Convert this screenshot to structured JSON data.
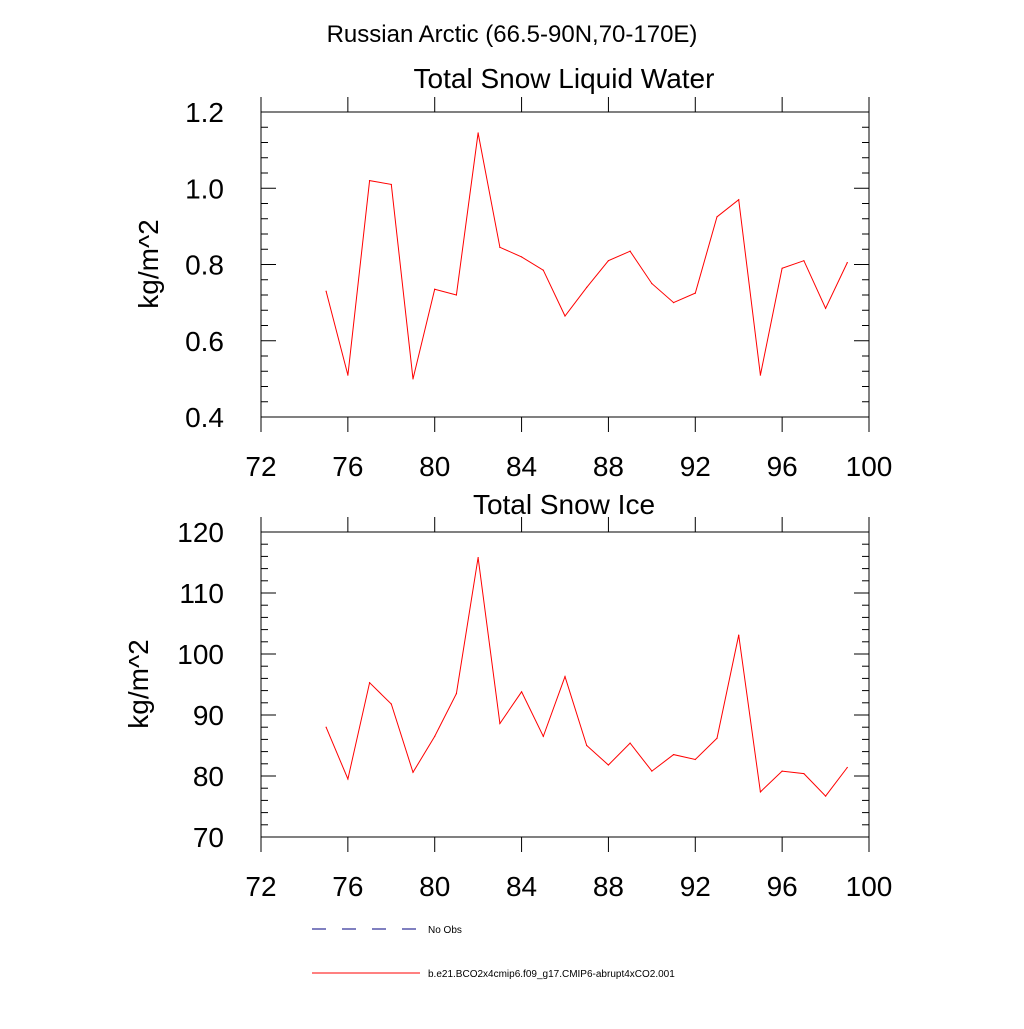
{
  "title": "Russian Arctic (66.5-90N,70-170E)",
  "colors": {
    "series": "#ff0000",
    "obs": "#000080",
    "axis": "#000000"
  },
  "legend": [
    {
      "label": "No Obs",
      "style": "dashed",
      "color": "#000080"
    },
    {
      "label": "b.e21.BCO2x4cmip6.f09_g17.CMIP6-abrupt4xCO2.001",
      "style": "solid",
      "color": "#ff0000"
    }
  ],
  "chart_data": [
    {
      "type": "line",
      "title": "Total Snow Liquid Water",
      "xlabel": "",
      "ylabel": "kg/m^2",
      "xlim": [
        72,
        100
      ],
      "ylim": [
        0.4,
        1.2
      ],
      "xticks": [
        72,
        76,
        80,
        84,
        88,
        92,
        96,
        100
      ],
      "xtick_labels": [
        "72",
        "76",
        "80",
        "84",
        "88",
        "92",
        "96",
        "100"
      ],
      "yticks": [
        0.4,
        0.6,
        0.8,
        1.0,
        1.2
      ],
      "ytick_labels": [
        "0.4",
        "0.6",
        "0.8",
        "1.0",
        "1.2"
      ],
      "x": [
        75,
        76,
        77,
        78,
        79,
        80,
        81,
        82,
        83,
        84,
        85,
        86,
        87,
        88,
        89,
        90,
        91,
        92,
        93,
        94,
        95,
        96,
        97,
        98,
        99
      ],
      "series": [
        {
          "name": "b.e21.BCO2x4cmip6.f09_g17.CMIP6-abrupt4xCO2.001",
          "values": [
            0.73,
            0.51,
            1.02,
            1.01,
            0.5,
            0.735,
            0.72,
            1.145,
            0.845,
            0.82,
            0.785,
            0.665,
            0.74,
            0.81,
            0.835,
            0.75,
            0.7,
            0.725,
            0.925,
            0.97,
            0.51,
            0.79,
            0.81,
            0.685,
            0.805
          ]
        }
      ]
    },
    {
      "type": "line",
      "title": "Total Snow Ice",
      "xlabel": "",
      "ylabel": "kg/m^2",
      "xlim": [
        72,
        100
      ],
      "ylim": [
        70,
        120
      ],
      "xticks": [
        72,
        76,
        80,
        84,
        88,
        92,
        96,
        100
      ],
      "xtick_labels": [
        "72",
        "76",
        "80",
        "84",
        "88",
        "92",
        "96",
        "100"
      ],
      "yticks": [
        70,
        80,
        90,
        100,
        110,
        120
      ],
      "ytick_labels": [
        "70",
        "80",
        "90",
        "100",
        "110",
        "120"
      ],
      "x": [
        75,
        76,
        77,
        78,
        79,
        80,
        81,
        82,
        83,
        84,
        85,
        86,
        87,
        88,
        89,
        90,
        91,
        92,
        93,
        94,
        95,
        96,
        97,
        98,
        99
      ],
      "series": [
        {
          "name": "b.e21.BCO2x4cmip6.f09_g17.CMIP6-abrupt4xCO2.001",
          "values": [
            88,
            79.5,
            95.3,
            91.8,
            80.6,
            86.5,
            93.5,
            115.8,
            88.6,
            93.8,
            86.5,
            96.3,
            85,
            81.8,
            85.4,
            80.8,
            83.5,
            82.7,
            86.2,
            103.1,
            77.4,
            80.8,
            80.4,
            76.7,
            81.4
          ]
        }
      ]
    }
  ]
}
